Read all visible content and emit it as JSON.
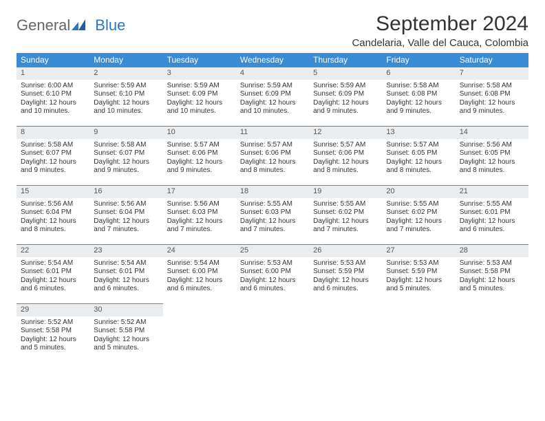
{
  "logo": {
    "part1": "General",
    "part2": "Blue"
  },
  "title": "September 2024",
  "subtitle": "Candelaria, Valle del Cauca, Colombia",
  "colors": {
    "header_bg": "#3b8bd4",
    "header_fg": "#ffffff",
    "daynum_bg": "#e9edf0",
    "daynum_border": "#5a88b4",
    "logo_blue": "#2b78c4",
    "text": "#333333",
    "page_bg": "#ffffff"
  },
  "typography": {
    "title_fontsize": 30,
    "subtitle_fontsize": 15,
    "dayheader_fontsize": 12,
    "cell_fontsize": 10,
    "logo_fontsize": 22
  },
  "calendar": {
    "dayHeaders": [
      "Sunday",
      "Monday",
      "Tuesday",
      "Wednesday",
      "Thursday",
      "Friday",
      "Saturday"
    ],
    "weeks": [
      [
        {
          "day": "1",
          "sunrise": "Sunrise: 6:00 AM",
          "sunset": "Sunset: 6:10 PM",
          "dl1": "Daylight: 12 hours",
          "dl2": "and 10 minutes."
        },
        {
          "day": "2",
          "sunrise": "Sunrise: 5:59 AM",
          "sunset": "Sunset: 6:10 PM",
          "dl1": "Daylight: 12 hours",
          "dl2": "and 10 minutes."
        },
        {
          "day": "3",
          "sunrise": "Sunrise: 5:59 AM",
          "sunset": "Sunset: 6:09 PM",
          "dl1": "Daylight: 12 hours",
          "dl2": "and 10 minutes."
        },
        {
          "day": "4",
          "sunrise": "Sunrise: 5:59 AM",
          "sunset": "Sunset: 6:09 PM",
          "dl1": "Daylight: 12 hours",
          "dl2": "and 10 minutes."
        },
        {
          "day": "5",
          "sunrise": "Sunrise: 5:59 AM",
          "sunset": "Sunset: 6:09 PM",
          "dl1": "Daylight: 12 hours",
          "dl2": "and 9 minutes."
        },
        {
          "day": "6",
          "sunrise": "Sunrise: 5:58 AM",
          "sunset": "Sunset: 6:08 PM",
          "dl1": "Daylight: 12 hours",
          "dl2": "and 9 minutes."
        },
        {
          "day": "7",
          "sunrise": "Sunrise: 5:58 AM",
          "sunset": "Sunset: 6:08 PM",
          "dl1": "Daylight: 12 hours",
          "dl2": "and 9 minutes."
        }
      ],
      [
        {
          "day": "8",
          "sunrise": "Sunrise: 5:58 AM",
          "sunset": "Sunset: 6:07 PM",
          "dl1": "Daylight: 12 hours",
          "dl2": "and 9 minutes."
        },
        {
          "day": "9",
          "sunrise": "Sunrise: 5:58 AM",
          "sunset": "Sunset: 6:07 PM",
          "dl1": "Daylight: 12 hours",
          "dl2": "and 9 minutes."
        },
        {
          "day": "10",
          "sunrise": "Sunrise: 5:57 AM",
          "sunset": "Sunset: 6:06 PM",
          "dl1": "Daylight: 12 hours",
          "dl2": "and 9 minutes."
        },
        {
          "day": "11",
          "sunrise": "Sunrise: 5:57 AM",
          "sunset": "Sunset: 6:06 PM",
          "dl1": "Daylight: 12 hours",
          "dl2": "and 8 minutes."
        },
        {
          "day": "12",
          "sunrise": "Sunrise: 5:57 AM",
          "sunset": "Sunset: 6:06 PM",
          "dl1": "Daylight: 12 hours",
          "dl2": "and 8 minutes."
        },
        {
          "day": "13",
          "sunrise": "Sunrise: 5:57 AM",
          "sunset": "Sunset: 6:05 PM",
          "dl1": "Daylight: 12 hours",
          "dl2": "and 8 minutes."
        },
        {
          "day": "14",
          "sunrise": "Sunrise: 5:56 AM",
          "sunset": "Sunset: 6:05 PM",
          "dl1": "Daylight: 12 hours",
          "dl2": "and 8 minutes."
        }
      ],
      [
        {
          "day": "15",
          "sunrise": "Sunrise: 5:56 AM",
          "sunset": "Sunset: 6:04 PM",
          "dl1": "Daylight: 12 hours",
          "dl2": "and 8 minutes."
        },
        {
          "day": "16",
          "sunrise": "Sunrise: 5:56 AM",
          "sunset": "Sunset: 6:04 PM",
          "dl1": "Daylight: 12 hours",
          "dl2": "and 7 minutes."
        },
        {
          "day": "17",
          "sunrise": "Sunrise: 5:56 AM",
          "sunset": "Sunset: 6:03 PM",
          "dl1": "Daylight: 12 hours",
          "dl2": "and 7 minutes."
        },
        {
          "day": "18",
          "sunrise": "Sunrise: 5:55 AM",
          "sunset": "Sunset: 6:03 PM",
          "dl1": "Daylight: 12 hours",
          "dl2": "and 7 minutes."
        },
        {
          "day": "19",
          "sunrise": "Sunrise: 5:55 AM",
          "sunset": "Sunset: 6:02 PM",
          "dl1": "Daylight: 12 hours",
          "dl2": "and 7 minutes."
        },
        {
          "day": "20",
          "sunrise": "Sunrise: 5:55 AM",
          "sunset": "Sunset: 6:02 PM",
          "dl1": "Daylight: 12 hours",
          "dl2": "and 7 minutes."
        },
        {
          "day": "21",
          "sunrise": "Sunrise: 5:55 AM",
          "sunset": "Sunset: 6:01 PM",
          "dl1": "Daylight: 12 hours",
          "dl2": "and 6 minutes."
        }
      ],
      [
        {
          "day": "22",
          "sunrise": "Sunrise: 5:54 AM",
          "sunset": "Sunset: 6:01 PM",
          "dl1": "Daylight: 12 hours",
          "dl2": "and 6 minutes."
        },
        {
          "day": "23",
          "sunrise": "Sunrise: 5:54 AM",
          "sunset": "Sunset: 6:01 PM",
          "dl1": "Daylight: 12 hours",
          "dl2": "and 6 minutes."
        },
        {
          "day": "24",
          "sunrise": "Sunrise: 5:54 AM",
          "sunset": "Sunset: 6:00 PM",
          "dl1": "Daylight: 12 hours",
          "dl2": "and 6 minutes."
        },
        {
          "day": "25",
          "sunrise": "Sunrise: 5:53 AM",
          "sunset": "Sunset: 6:00 PM",
          "dl1": "Daylight: 12 hours",
          "dl2": "and 6 minutes."
        },
        {
          "day": "26",
          "sunrise": "Sunrise: 5:53 AM",
          "sunset": "Sunset: 5:59 PM",
          "dl1": "Daylight: 12 hours",
          "dl2": "and 6 minutes."
        },
        {
          "day": "27",
          "sunrise": "Sunrise: 5:53 AM",
          "sunset": "Sunset: 5:59 PM",
          "dl1": "Daylight: 12 hours",
          "dl2": "and 5 minutes."
        },
        {
          "day": "28",
          "sunrise": "Sunrise: 5:53 AM",
          "sunset": "Sunset: 5:58 PM",
          "dl1": "Daylight: 12 hours",
          "dl2": "and 5 minutes."
        }
      ],
      [
        {
          "day": "29",
          "sunrise": "Sunrise: 5:52 AM",
          "sunset": "Sunset: 5:58 PM",
          "dl1": "Daylight: 12 hours",
          "dl2": "and 5 minutes."
        },
        {
          "day": "30",
          "sunrise": "Sunrise: 5:52 AM",
          "sunset": "Sunset: 5:58 PM",
          "dl1": "Daylight: 12 hours",
          "dl2": "and 5 minutes."
        },
        null,
        null,
        null,
        null,
        null
      ]
    ]
  }
}
